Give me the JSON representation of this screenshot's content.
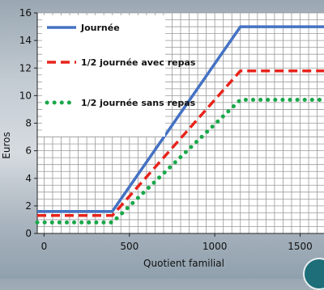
{
  "chart_data": {
    "type": "line",
    "xlabel": "Quotient familial",
    "ylabel": "Euros",
    "xlim": [
      -40,
      1640
    ],
    "ylim": [
      0,
      16
    ],
    "x_ticks": [
      0,
      500,
      1000,
      1500
    ],
    "y_ticks": [
      0,
      2,
      4,
      6,
      8,
      10,
      12,
      14,
      16
    ],
    "grid": true,
    "legend_position": "top-left",
    "series": [
      {
        "name": "Journée",
        "color": "#4472c4",
        "style": "solid",
        "points": [
          [
            -40,
            1.6
          ],
          [
            400,
            1.6
          ],
          [
            1150,
            15
          ],
          [
            1640,
            15
          ]
        ]
      },
      {
        "name": "1/2 journée avec repas",
        "color": "#e8231b",
        "style": "dashed",
        "points": [
          [
            -40,
            1.3
          ],
          [
            400,
            1.3
          ],
          [
            1150,
            11.8
          ],
          [
            1640,
            11.8
          ]
        ]
      },
      {
        "name": "1/2 journée sans repas",
        "color": "#1aa84a",
        "style": "dotted",
        "points": [
          [
            -40,
            0.8
          ],
          [
            400,
            0.8
          ],
          [
            1150,
            9.7
          ],
          [
            1640,
            9.7
          ]
        ]
      }
    ]
  }
}
